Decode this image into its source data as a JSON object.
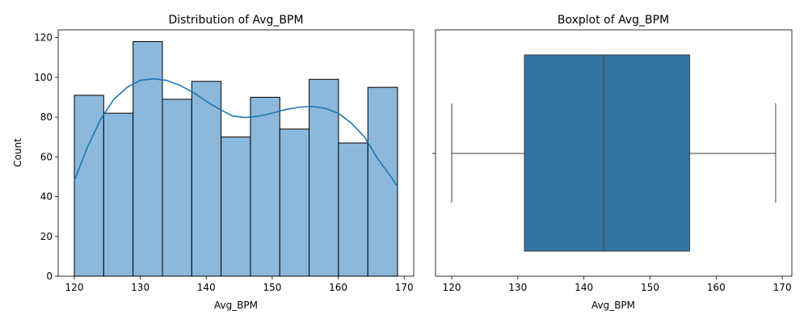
{
  "chart_data": [
    {
      "type": "bar",
      "title": "Distribution of Avg_BPM",
      "xlabel": "Avg_BPM",
      "ylabel": "Count",
      "xlim": [
        117.55,
        171.45
      ],
      "ylim": [
        0,
        123.9
      ],
      "xticks": [
        120,
        130,
        140,
        150,
        160,
        170
      ],
      "yticks": [
        0,
        20,
        40,
        60,
        80,
        100,
        120
      ],
      "bin_edges": [
        120,
        124.45,
        128.9,
        133.35,
        137.8,
        142.25,
        146.7,
        151.15,
        155.6,
        160.05,
        164.5,
        169
      ],
      "values": [
        91,
        82,
        118,
        89,
        98,
        70,
        90,
        74,
        99,
        67,
        95
      ],
      "kde": {
        "x": [
          120,
          122,
          124,
          126,
          128,
          130,
          132,
          134,
          136,
          138,
          140,
          142,
          144,
          146,
          148,
          150,
          152,
          154,
          156,
          158,
          160,
          162,
          164,
          166,
          168,
          169
        ],
        "y": [
          48,
          65,
          79,
          89,
          95,
          98.5,
          99.3,
          98.5,
          96,
          92.5,
          88,
          84,
          80.6,
          79.8,
          80.5,
          82,
          83.8,
          85,
          85.4,
          84.5,
          82,
          77,
          70,
          59,
          50,
          45
        ]
      },
      "bar_color": "#8cb8db",
      "line_color": "#1f77b4"
    },
    {
      "type": "box",
      "title": "Boxplot of Avg_BPM",
      "xlabel": "Avg_BPM",
      "xlim": [
        117.55,
        171.45
      ],
      "xticks": [
        120,
        130,
        140,
        150,
        160,
        170
      ],
      "whisker_low": 120,
      "q1": 131,
      "median": 143,
      "q3": 156,
      "whisker_high": 169,
      "box_color": "#3274a1"
    }
  ]
}
